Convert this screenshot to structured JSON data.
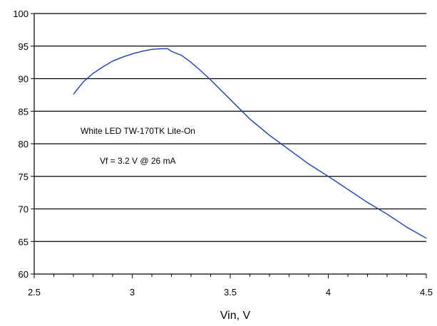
{
  "chart_data": {
    "type": "line",
    "title": "",
    "xlabel": "Vin, V",
    "ylabel": "",
    "xlim": [
      2.5,
      4.5
    ],
    "ylim": [
      60,
      100
    ],
    "x_ticks": [
      "2.5",
      "3",
      "3.5",
      "4",
      "4.5"
    ],
    "x_tick_values": [
      2.5,
      3,
      3.5,
      4,
      4.5
    ],
    "y_ticks": [
      "60",
      "65",
      "70",
      "75",
      "80",
      "85",
      "90",
      "95",
      "100"
    ],
    "y_tick_values": [
      60,
      65,
      70,
      75,
      80,
      85,
      90,
      95,
      100
    ],
    "grid": "horizontal",
    "legend": "none",
    "line_color": "#1f3fa8",
    "series": [
      {
        "x": [
          2.7,
          2.75,
          2.8,
          2.85,
          2.9,
          2.95,
          3.0,
          3.05,
          3.1,
          3.15,
          3.18,
          3.2,
          3.25,
          3.3,
          3.35,
          3.4,
          3.5,
          3.6,
          3.7,
          3.8,
          3.9,
          4.0,
          4.1,
          4.2,
          4.3,
          4.4,
          4.5
        ],
        "y": [
          87.6,
          89.5,
          90.8,
          91.8,
          92.7,
          93.3,
          93.8,
          94.2,
          94.5,
          94.6,
          94.6,
          94.2,
          93.6,
          92.5,
          91.2,
          89.8,
          86.8,
          83.8,
          81.3,
          79.1,
          76.9,
          75.0,
          73.0,
          71.0,
          69.2,
          67.2,
          65.5
        ]
      }
    ],
    "annotations": [
      "White LED TW-170TK Lite-On",
      "Vf = 3.2 V @ 26 mA"
    ]
  }
}
